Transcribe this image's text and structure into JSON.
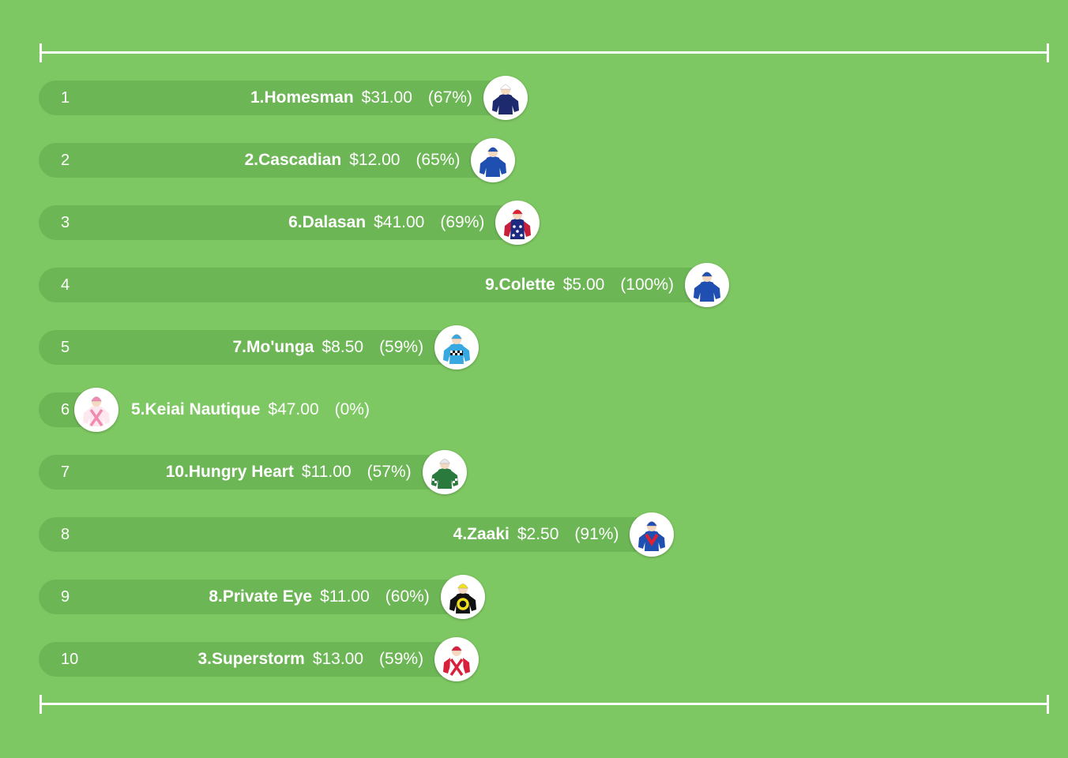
{
  "chart_data": {
    "type": "bar",
    "orientation": "horizontal",
    "value_range": [
      0,
      100
    ],
    "value_unit": "%",
    "ranks": [
      "1",
      "2",
      "3",
      "4",
      "5",
      "6",
      "7",
      "8",
      "9",
      "10"
    ],
    "runners": [
      {
        "name": "1.Homesman",
        "price": "$31.00",
        "percent_label": "(67%)",
        "value": 67,
        "silk_icon": "jockey-silk-navy-white-cap",
        "silk_colors": {
          "cap": "#ffffff",
          "body": "#1e2a6e",
          "sleeves": "#1e2a6e"
        }
      },
      {
        "name": "2.Cascadian",
        "price": "$12.00",
        "percent_label": "(65%)",
        "value": 65,
        "silk_icon": "jockey-silk-royal-blue",
        "silk_colors": {
          "cap": "#1f4fb0",
          "body": "#1f4fb0",
          "sleeves": "#1f4fb0"
        }
      },
      {
        "name": "6.Dalasan",
        "price": "$41.00",
        "percent_label": "(69%)",
        "value": 69,
        "silk_icon": "jockey-silk-navy-white-stars-red-sleeves",
        "silk_colors": {
          "cap": "#e02030",
          "body": "#1e2a80",
          "sleeves": "#c8203a"
        }
      },
      {
        "name": "9.Colette",
        "price": "$5.00",
        "percent_label": "(100%)",
        "value": 100,
        "silk_icon": "jockey-silk-royal-blue",
        "silk_colors": {
          "cap": "#1f4fb0",
          "body": "#1f4fb0",
          "sleeves": "#1f4fb0"
        }
      },
      {
        "name": "7.Mo'unga",
        "price": "$8.50",
        "percent_label": "(59%)",
        "value": 59,
        "silk_icon": "jockey-silk-light-blue-checked-band",
        "silk_colors": {
          "cap": "#38a8e0",
          "body": "#38a8e0",
          "sleeves": "#38a8e0"
        }
      },
      {
        "name": "5.Keiai Nautique",
        "price": "$47.00",
        "percent_label": "(0%)",
        "value": 0,
        "silk_icon": "jockey-silk-white-pink-cross",
        "silk_colors": {
          "cap": "#f08ab0",
          "body": "#fde8f0",
          "sleeves": "#fde8f0"
        }
      },
      {
        "name": "10.Hungry Heart",
        "price": "$11.00",
        "percent_label": "(57%)",
        "value": 57,
        "silk_icon": "jockey-silk-green-checked-sleeves",
        "silk_colors": {
          "cap": "#e8e8e8",
          "body": "#2a7a3e",
          "sleeves": "#2a7a3e"
        }
      },
      {
        "name": "4.Zaaki",
        "price": "$2.50",
        "percent_label": "(91%)",
        "value": 91,
        "silk_icon": "jockey-silk-blue-red-chevron",
        "silk_colors": {
          "cap": "#1f4fb0",
          "body": "#1f4fb0",
          "sleeves": "#1f4fb0"
        }
      },
      {
        "name": "8.Private Eye",
        "price": "$11.00",
        "percent_label": "(60%)",
        "value": 60,
        "silk_icon": "jockey-silk-black-yellow-ring",
        "silk_colors": {
          "cap": "#f0e020",
          "body": "#111111",
          "sleeves": "#111111"
        }
      },
      {
        "name": "3.Superstorm",
        "price": "$13.00",
        "percent_label": "(59%)",
        "value": 59,
        "silk_icon": "jockey-silk-white-red-cross",
        "silk_colors": {
          "cap": "#d8203a",
          "body": "#ffffff",
          "sleeves": "#d8203a"
        }
      }
    ]
  },
  "colors": {
    "background": "#7ec863",
    "bar": "#6db656",
    "text": "#ffffff"
  }
}
